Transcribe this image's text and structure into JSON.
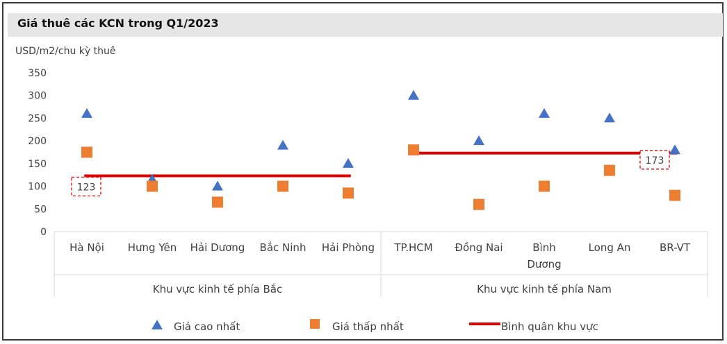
{
  "chart_data": {
    "type": "scatter",
    "title": "Giá thuê các KCN trong Q1/2023",
    "ylabel": "USD/m2/chu kỳ thuê",
    "ylim": [
      0,
      350
    ],
    "yticks": [
      0,
      50,
      100,
      150,
      200,
      250,
      300,
      350
    ],
    "categories": [
      "Hà Nội",
      "Hưng Yên",
      "Hải Dương",
      "Bắc Ninh",
      "Hải Phòng",
      "TP.HCM",
      "Đồng Nai",
      "Bình Dương",
      "Long An",
      "BR-VT"
    ],
    "category_lines": [
      [
        "Hà Nội"
      ],
      [
        "Hưng Yên"
      ],
      [
        "Hải Dương"
      ],
      [
        "Bắc Ninh"
      ],
      [
        "Hải Phòng"
      ],
      [
        "TP.HCM"
      ],
      [
        "Đồng Nai"
      ],
      [
        "Bình",
        "Dương"
      ],
      [
        "Long An"
      ],
      [
        "BR-VT"
      ]
    ],
    "groups": [
      {
        "label": "Khu vực kinh tế phía Bắc",
        "categories": [
          "Hà Nội",
          "Hưng Yên",
          "Hải Dương",
          "Bắc Ninh",
          "Hải Phòng"
        ]
      },
      {
        "label": "Khu vực kinh tế phía Nam",
        "categories": [
          "TP.HCM",
          "Đồng Nai",
          "Bình Dương",
          "Long An",
          "BR-VT"
        ]
      }
    ],
    "series": [
      {
        "name": "Giá cao nhất",
        "marker": "triangle",
        "color": "#4472C4",
        "values": [
          260,
          115,
          100,
          190,
          150,
          300,
          200,
          260,
          250,
          180
        ]
      },
      {
        "name": "Giá thấp nhất",
        "marker": "square",
        "color": "#ED7D31",
        "values": [
          175,
          100,
          65,
          100,
          85,
          180,
          60,
          100,
          135,
          80
        ]
      }
    ],
    "averages": [
      {
        "name": "Bình quân khu vực",
        "group": 0,
        "value": 123,
        "label": "123"
      },
      {
        "name": "Bình quân khu vực",
        "group": 1,
        "value": 173,
        "label": "173"
      }
    ],
    "average_color": "#E00000",
    "legend": [
      {
        "name": "Giá cao nhất",
        "marker": "triangle",
        "color": "#4472C4"
      },
      {
        "name": "Giá thấp nhất",
        "marker": "square",
        "color": "#ED7D31"
      },
      {
        "name": "Bình quân khu vực",
        "marker": "line",
        "color": "#E00000"
      }
    ],
    "legend_position": "bottom",
    "grid": false
  }
}
